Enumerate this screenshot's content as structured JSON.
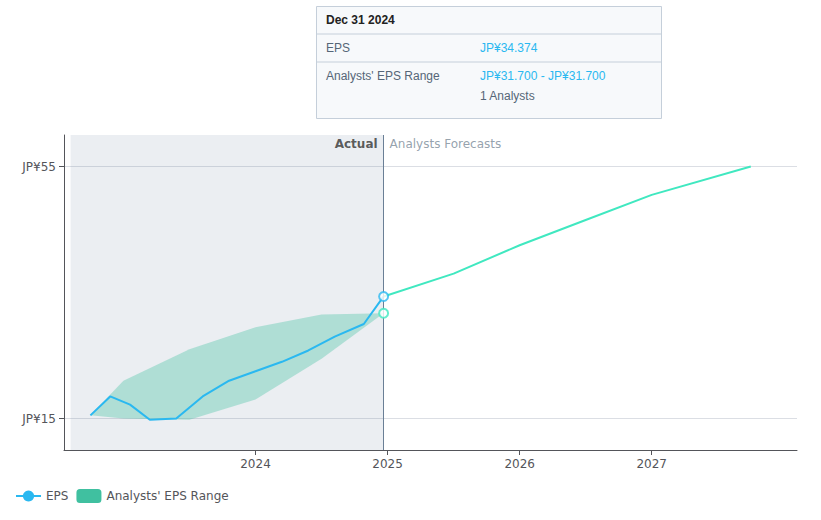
{
  "chart_data": {
    "type": "line",
    "xlim": [
      2022.55,
      2028.1
    ],
    "xticks": [
      2024,
      2025,
      2026,
      2027
    ],
    "ylim": [
      10.0,
      60.0
    ],
    "yticks": [
      {
        "value": 15,
        "label": "JP¥15"
      },
      {
        "value": 55,
        "label": "JP¥55"
      }
    ],
    "grid": true,
    "legend": "lower left",
    "series": [
      {
        "name": "EPS",
        "type": "line",
        "color": "#2ab8f0",
        "x": [
          2022.75,
          2022.9,
          2023.05,
          2023.2,
          2023.4,
          2023.6,
          2023.8,
          2024.0,
          2024.2,
          2024.4,
          2024.6,
          2024.82,
          2024.97
        ],
        "values": [
          15.5,
          18.5,
          17.2,
          14.8,
          15.0,
          18.5,
          21.0,
          22.5,
          24.0,
          25.8,
          28.0,
          30.0,
          34.374
        ]
      },
      {
        "type": "line",
        "color": "#40e8c0",
        "x": [
          2024.97,
          2025.5,
          2026.0,
          2026.5,
          2027.0,
          2027.75
        ],
        "values": [
          34.374,
          38.0,
          42.5,
          46.5,
          50.5,
          55.0
        ]
      },
      {
        "name": "Analysts' EPS Range",
        "type": "range",
        "color": "#40c0a0",
        "x": [
          2022.75,
          2023.0,
          2023.5,
          2024.0,
          2024.5,
          2024.97
        ],
        "lower": [
          15.5,
          15.0,
          14.8,
          18.0,
          24.5,
          31.7
        ],
        "upper": [
          15.5,
          21.0,
          26.0,
          29.5,
          31.5,
          31.7
        ]
      }
    ],
    "markers": [
      {
        "x": 2024.97,
        "y": 34.374,
        "color": "#2ab8f0"
      },
      {
        "x": 2024.97,
        "y": 31.7,
        "color": "#40e8c0"
      }
    ],
    "divider_x": 2024.97,
    "highlight": [
      2022.6,
      2024.97
    ],
    "annotations": [
      {
        "text": "Actual",
        "x": 2024.97,
        "y": 58.5,
        "anchor": "right"
      },
      {
        "text": "Analysts Forecasts",
        "x": 2024.97,
        "y": 58.5,
        "anchor": "left"
      }
    ],
    "tooltip_panel": {
      "title": "Dec 31 2024",
      "rows": [
        {
          "label": "EPS",
          "value": "JP¥34.374"
        },
        {
          "label": "Analysts' EPS Range",
          "value": "JP¥31.700 - JP¥31.700"
        }
      ],
      "note": "1 Analysts"
    }
  }
}
